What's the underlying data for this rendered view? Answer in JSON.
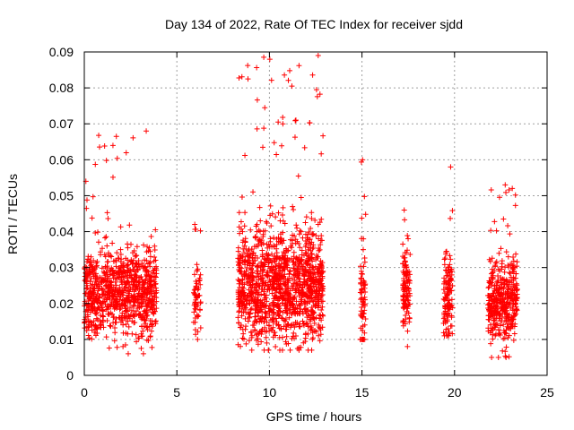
{
  "chart_data": {
    "type": "scatter",
    "title": "Day 134 of 2022, Rate Of TEC Index for receiver sjdd",
    "xlabel": "GPS time / hours",
    "ylabel": "ROTI / TECUs",
    "xlim": [
      0,
      25
    ],
    "ylim": [
      0,
      0.09
    ],
    "x_ticks": [
      "0",
      "5",
      "10",
      "15",
      "20",
      "25"
    ],
    "y_ticks": [
      "0",
      "0.01",
      "0.02",
      "0.03",
      "0.04",
      "0.05",
      "0.06",
      "0.07",
      "0.08",
      "0.09"
    ],
    "grid": true,
    "marker": "+",
    "series_color": "#ff0000",
    "clusters": [
      {
        "x_start": 0.0,
        "x_end": 3.9,
        "y_min": 0.006,
        "y_max": 0.068,
        "y_mean": 0.023,
        "spread": 0.006,
        "count": 900
      },
      {
        "x_start": 5.9,
        "x_end": 6.3,
        "y_min": 0.01,
        "y_max": 0.042,
        "y_mean": 0.022,
        "spread": 0.005,
        "count": 60
      },
      {
        "x_start": 8.3,
        "x_end": 12.9,
        "y_min": 0.007,
        "y_max": 0.089,
        "y_mean": 0.025,
        "spread": 0.008,
        "count": 1300
      },
      {
        "x_start": 14.9,
        "x_end": 15.2,
        "y_min": 0.01,
        "y_max": 0.06,
        "y_mean": 0.022,
        "spread": 0.006,
        "count": 70
      },
      {
        "x_start": 17.2,
        "x_end": 17.6,
        "y_min": 0.008,
        "y_max": 0.046,
        "y_mean": 0.024,
        "spread": 0.006,
        "count": 110
      },
      {
        "x_start": 19.4,
        "x_end": 19.9,
        "y_min": 0.011,
        "y_max": 0.058,
        "y_mean": 0.022,
        "spread": 0.006,
        "count": 120
      },
      {
        "x_start": 21.8,
        "x_end": 23.4,
        "y_min": 0.005,
        "y_max": 0.053,
        "y_mean": 0.021,
        "spread": 0.006,
        "count": 400
      }
    ]
  }
}
